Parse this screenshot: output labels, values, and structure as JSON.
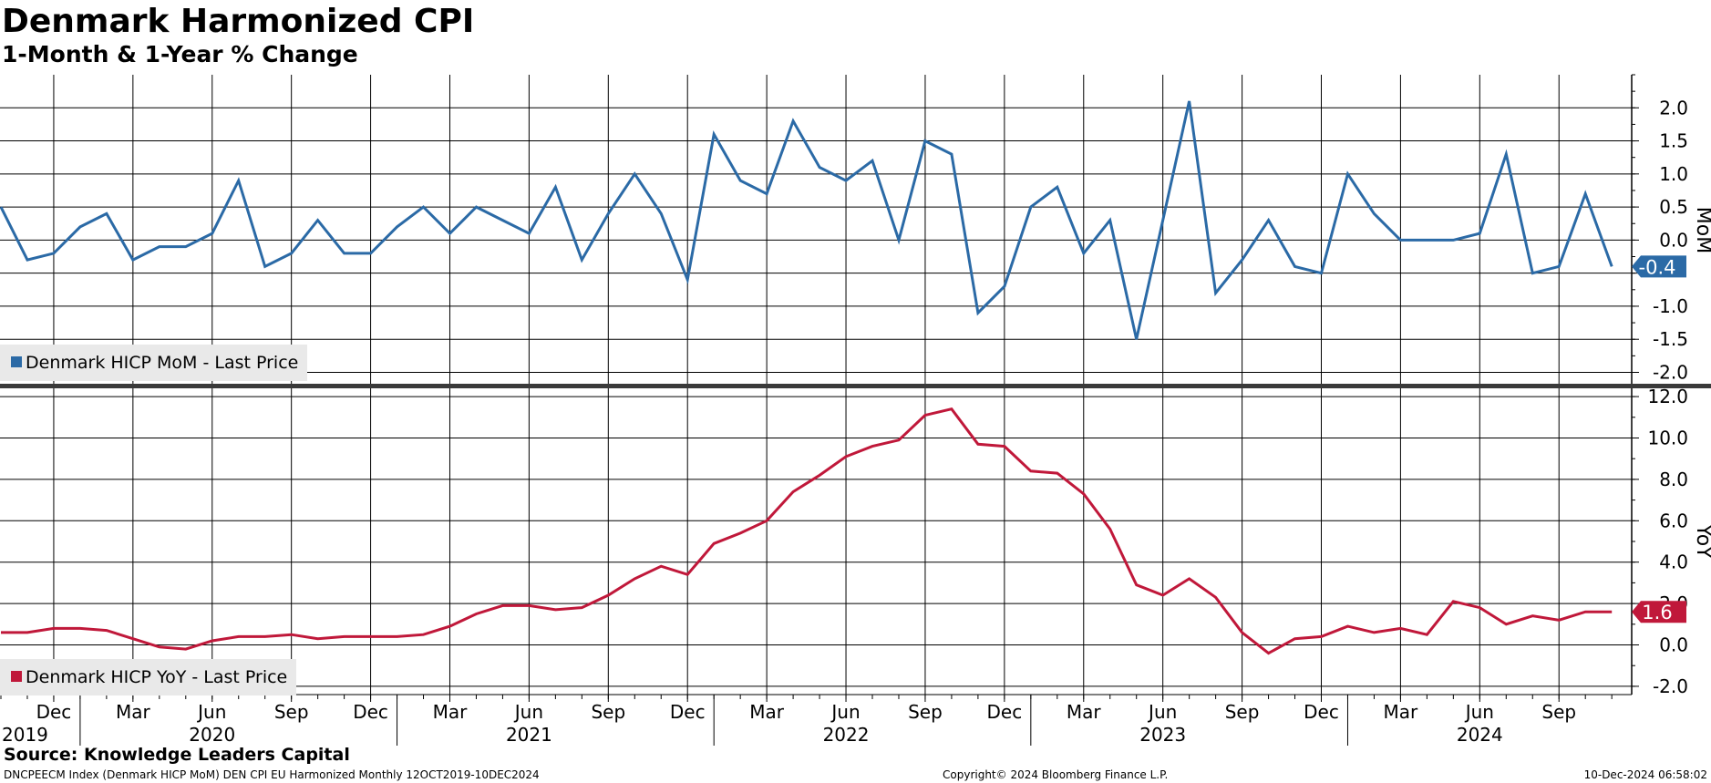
{
  "header": {
    "title": "Denmark Harmonized CPI",
    "subtitle": "1-Month & 1-Year % Change"
  },
  "footer": {
    "source": "Source: Knowledge Leaders Capital",
    "ticker_info": "DNCPEECM Index (Denmark HICP MoM) DEN CPI EU Harmonized  Monthly 12OCT2019-10DEC2024",
    "copyright": "Copyright© 2024 Bloomberg Finance L.P.",
    "timestamp": "10-Dec-2024 06:58:02"
  },
  "colors": {
    "mom": "#2b6aa6",
    "yoy": "#c0183a",
    "grid": "#000000",
    "divider": "#3a3a3a",
    "legend_bg": "#e9e9e9"
  },
  "chart_data": [
    {
      "type": "line",
      "ylabel": "MoM",
      "ylim": [
        -2.2,
        2.5
      ],
      "yticks": [
        2.0,
        1.5,
        1.0,
        0.5,
        0.0,
        -0.5,
        -1.0,
        -1.5,
        -2.0
      ],
      "ytick_labels": [
        "2.0",
        "1.5",
        "1.0",
        "0.5",
        "0.0",
        "",
        "-1.0",
        "-1.5",
        "-2.0"
      ],
      "grid": true,
      "legend": "bottom-left",
      "legend_label": "Denmark HICP MoM - Last Price",
      "last_value_label": "-0.4",
      "series": [
        {
          "name": "Denmark HICP MoM - Last Price",
          "values": [
            0.5,
            -0.3,
            -0.2,
            0.2,
            0.4,
            -0.3,
            -0.1,
            -0.1,
            0.1,
            0.9,
            -0.4,
            -0.2,
            0.3,
            -0.2,
            -0.2,
            0.2,
            0.5,
            0.1,
            0.5,
            0.3,
            0.1,
            0.8,
            -0.3,
            0.4,
            1.0,
            0.4,
            -0.6,
            1.6,
            0.9,
            0.7,
            1.8,
            1.1,
            0.9,
            1.2,
            0.0,
            1.5,
            1.3,
            -1.1,
            -0.7,
            0.5,
            0.8,
            -0.2,
            0.3,
            -1.5,
            0.3,
            2.1,
            -0.8,
            -0.3,
            0.3,
            -0.4,
            -0.5,
            1.0,
            0.4,
            0.0,
            0.0,
            0.0,
            0.1,
            1.3,
            -0.5,
            -0.4,
            0.7,
            -0.4
          ]
        }
      ]
    },
    {
      "type": "line",
      "ylabel": "YoY",
      "ylim": [
        -2.4,
        12.4
      ],
      "yticks": [
        12.0,
        10.0,
        8.0,
        6.0,
        4.0,
        2.0,
        0.0,
        -2.0
      ],
      "ytick_labels": [
        "12.0",
        "10.0",
        "8.0",
        "6.0",
        "4.0",
        "2.0",
        "0.0",
        "-2.0"
      ],
      "grid": true,
      "legend": "bottom-left",
      "legend_label": "Denmark HICP YoY - Last Price",
      "last_value_label": "1.6",
      "series": [
        {
          "name": "Denmark HICP YoY - Last Price",
          "values": [
            0.6,
            0.6,
            0.8,
            0.8,
            0.7,
            0.3,
            -0.1,
            -0.2,
            0.2,
            0.4,
            0.4,
            0.5,
            0.3,
            0.4,
            0.4,
            0.4,
            0.5,
            0.9,
            1.5,
            1.9,
            1.9,
            1.7,
            1.8,
            2.4,
            3.2,
            3.8,
            3.4,
            4.9,
            5.4,
            6.0,
            7.4,
            8.2,
            9.1,
            9.6,
            9.9,
            11.1,
            11.4,
            9.7,
            9.6,
            8.4,
            8.3,
            7.3,
            5.6,
            2.9,
            2.4,
            3.2,
            2.3,
            0.6,
            -0.4,
            0.3,
            0.4,
            0.9,
            0.6,
            0.8,
            0.5,
            2.1,
            1.8,
            1.0,
            1.4,
            1.2,
            1.6,
            1.6
          ]
        }
      ]
    }
  ],
  "x_axis": {
    "month_ticks": [
      {
        "label": "Dec",
        "index": 2
      },
      {
        "label": "Mar",
        "index": 5
      },
      {
        "label": "Jun",
        "index": 8
      },
      {
        "label": "Sep",
        "index": 11
      },
      {
        "label": "Dec",
        "index": 14
      },
      {
        "label": "Mar",
        "index": 17
      },
      {
        "label": "Jun",
        "index": 20
      },
      {
        "label": "Sep",
        "index": 23
      },
      {
        "label": "Dec",
        "index": 26
      },
      {
        "label": "Mar",
        "index": 29
      },
      {
        "label": "Jun",
        "index": 32
      },
      {
        "label": "Sep",
        "index": 35
      },
      {
        "label": "Dec",
        "index": 38
      },
      {
        "label": "Mar",
        "index": 41
      },
      {
        "label": "Jun",
        "index": 44
      },
      {
        "label": "Sep",
        "index": 47
      },
      {
        "label": "Dec",
        "index": 50
      },
      {
        "label": "Mar",
        "index": 53
      },
      {
        "label": "Jun",
        "index": 56
      },
      {
        "label": "Sep",
        "index": 59
      }
    ],
    "year_labels": [
      {
        "label": "2019",
        "index": 0.2
      },
      {
        "label": "2020",
        "index": 8
      },
      {
        "label": "2021",
        "index": 20
      },
      {
        "label": "2022",
        "index": 32
      },
      {
        "label": "2023",
        "index": 44
      },
      {
        "label": "2024",
        "index": 56
      }
    ],
    "year_separators": [
      3,
      15,
      27,
      39,
      51
    ]
  }
}
